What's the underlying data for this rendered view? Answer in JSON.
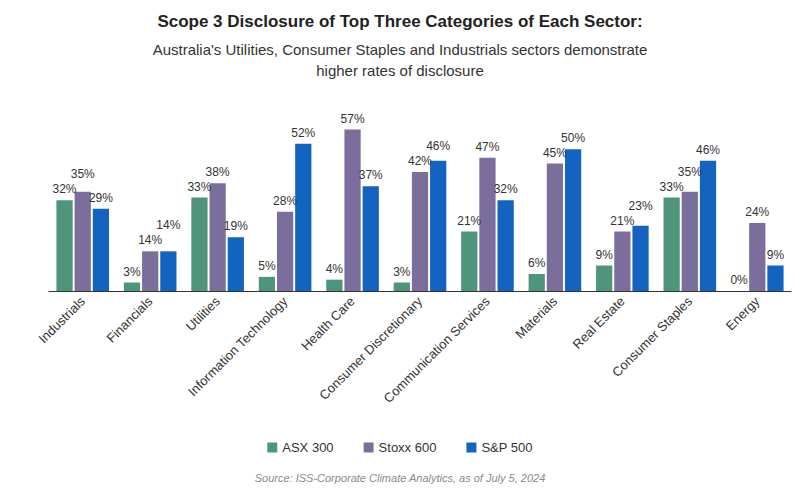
{
  "chart_data": {
    "type": "bar",
    "title": "Scope 3 Disclosure of Top Three Categories of Each Sector:",
    "subtitle": "Australia's Utilities, Consumer Staples and Industrials sectors demonstrate\nhigher rates of disclosure",
    "annotations": [
      "Source: ISS-Corporate Climate Analytics, as of July 5, 2024"
    ],
    "categories": [
      "Industrials",
      "Financials",
      "Utilities",
      "Information Technology",
      "Health Care",
      "Consumer Discretionary",
      "Communication Services",
      "Materials",
      "Real Estate",
      "Consumer Staples",
      "Energy"
    ],
    "series": [
      {
        "name": "ASX 300",
        "color": "#4e957b",
        "values": [
          32,
          3,
          33,
          5,
          4,
          3,
          21,
          6,
          9,
          33,
          0
        ],
        "value_labels": [
          "32%",
          "3%",
          "33%",
          "5%",
          "4%",
          "3%",
          "21%",
          "6%",
          "9%",
          "33%",
          "0%"
        ]
      },
      {
        "name": "Stoxx 600",
        "color": "#7b6e9d",
        "values": [
          35,
          14,
          38,
          28,
          57,
          42,
          47,
          45,
          21,
          35,
          24
        ],
        "value_labels": [
          "35%",
          "14%",
          "38%",
          "28%",
          "57%",
          "42%",
          "47%",
          "45%",
          "21%",
          "35%",
          "24%"
        ]
      },
      {
        "name": "S&P 500",
        "color": "#1364c1",
        "values": [
          29,
          14,
          19,
          52,
          37,
          46,
          32,
          50,
          23,
          46,
          9
        ],
        "value_labels": [
          "29%",
          "14%",
          "19%",
          "52%",
          "37%",
          "46%",
          "32%",
          "50%",
          "23%",
          "46%",
          "9%"
        ]
      }
    ],
    "ylim": [
      0,
      60
    ],
    "grid": false,
    "tick_labels": "x",
    "data_labels": true,
    "legend": "bottom"
  }
}
